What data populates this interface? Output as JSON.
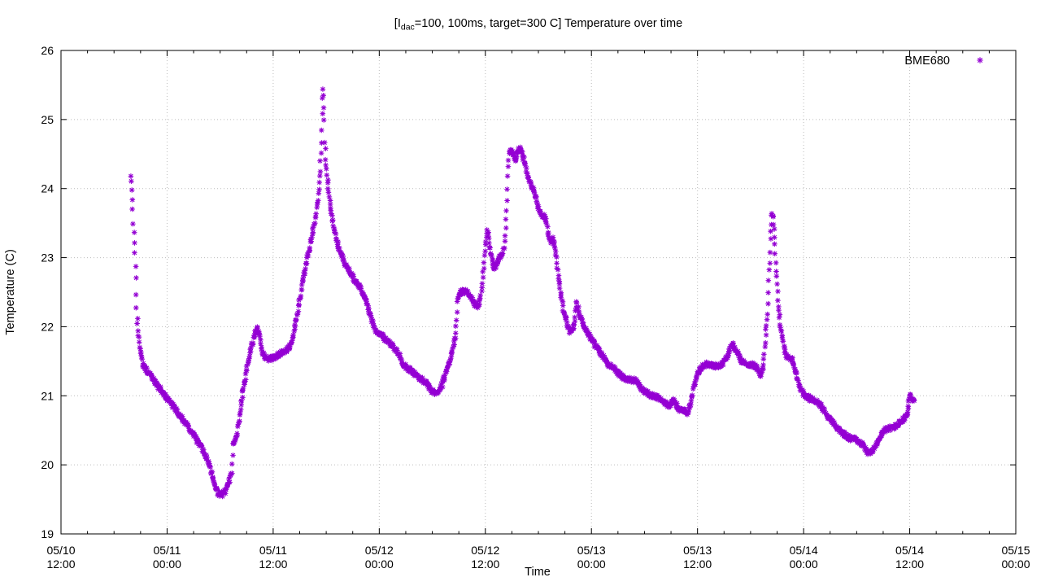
{
  "title_parts": {
    "pre": "[I",
    "sub": "dac",
    "post": "=100, 100ms, target=300 C] Temperature over time"
  },
  "chart_data": {
    "type": "scatter",
    "title": "[I_dac=100, 100ms, target=300 C] Temperature over time",
    "xlabel": "Time",
    "ylabel": "Temperature (C)",
    "ylim": [
      19,
      26
    ],
    "yticks": [
      19,
      20,
      21,
      22,
      23,
      24,
      25,
      26
    ],
    "grid": true,
    "legend_position": "top-right",
    "x_axis": {
      "unit": "hours since 05/10 12:00",
      "range_hours": [
        0,
        108
      ],
      "major_tick_hours": 12,
      "minor_tick_hours": 3,
      "tick_labels": [
        [
          "05/10",
          "12:00"
        ],
        [
          "05/11",
          "00:00"
        ],
        [
          "05/11",
          "12:00"
        ],
        [
          "05/12",
          "00:00"
        ],
        [
          "05/12",
          "12:00"
        ],
        [
          "05/13",
          "00:00"
        ],
        [
          "05/13",
          "12:00"
        ],
        [
          "05/14",
          "00:00"
        ],
        [
          "05/14",
          "12:00"
        ],
        [
          "05/15",
          "00:00"
        ]
      ]
    },
    "series": [
      {
        "name": "BME680",
        "color": "#9400d3",
        "marker": "asterisk",
        "points": [
          [
            7.9,
            24.18
          ],
          [
            7.95,
            24.1
          ],
          [
            8.0,
            23.95
          ],
          [
            8.05,
            23.82
          ],
          [
            8.1,
            23.7
          ],
          [
            8.17,
            23.52
          ],
          [
            8.23,
            23.38
          ],
          [
            8.3,
            23.2
          ],
          [
            8.35,
            23.08
          ],
          [
            8.42,
            22.9
          ],
          [
            8.55,
            22.25
          ],
          [
            8.62,
            22.1
          ],
          [
            8.7,
            21.95
          ],
          [
            8.8,
            21.85
          ],
          [
            9.0,
            21.62
          ],
          [
            9.3,
            21.45
          ],
          [
            9.6,
            21.38
          ],
          [
            10.0,
            21.33
          ],
          [
            10.4,
            21.25
          ],
          [
            10.9,
            21.15
          ],
          [
            11.6,
            21.03
          ],
          [
            12.3,
            20.92
          ],
          [
            13.0,
            20.8
          ],
          [
            13.8,
            20.66
          ],
          [
            14.6,
            20.51
          ],
          [
            15.3,
            20.37
          ],
          [
            15.9,
            20.25
          ],
          [
            16.5,
            20.1
          ],
          [
            16.9,
            19.95
          ],
          [
            17.2,
            19.8
          ],
          [
            17.5,
            19.66
          ],
          [
            17.8,
            19.58
          ],
          [
            18.2,
            19.57
          ],
          [
            18.6,
            19.62
          ],
          [
            18.9,
            19.72
          ],
          [
            19.15,
            19.82
          ],
          [
            19.3,
            19.9
          ],
          [
            19.45,
            20.28
          ],
          [
            19.6,
            20.33
          ],
          [
            19.75,
            20.38
          ],
          [
            19.9,
            20.45
          ],
          [
            20.1,
            20.6
          ],
          [
            20.3,
            20.8
          ],
          [
            20.5,
            21.0
          ],
          [
            20.7,
            21.15
          ],
          [
            20.9,
            21.3
          ],
          [
            21.2,
            21.5
          ],
          [
            21.5,
            21.68
          ],
          [
            21.8,
            21.82
          ],
          [
            22.0,
            21.92
          ],
          [
            22.2,
            21.97
          ],
          [
            22.45,
            21.88
          ],
          [
            22.7,
            21.68
          ],
          [
            23.0,
            21.57
          ],
          [
            23.4,
            21.53
          ],
          [
            23.9,
            21.55
          ],
          [
            24.5,
            21.58
          ],
          [
            25.0,
            21.62
          ],
          [
            25.5,
            21.65
          ],
          [
            25.9,
            21.72
          ],
          [
            26.2,
            21.85
          ],
          [
            26.6,
            22.1
          ],
          [
            27.0,
            22.4
          ],
          [
            27.4,
            22.7
          ],
          [
            27.8,
            22.95
          ],
          [
            28.2,
            23.2
          ],
          [
            28.6,
            23.45
          ],
          [
            28.9,
            23.7
          ],
          [
            29.1,
            23.9
          ],
          [
            29.25,
            24.15
          ],
          [
            29.35,
            24.4
          ],
          [
            29.45,
            24.65
          ],
          [
            29.5,
            24.85
          ],
          [
            29.55,
            25.1
          ],
          [
            29.6,
            25.3
          ],
          [
            29.65,
            25.42
          ],
          [
            29.7,
            25.38
          ],
          [
            29.78,
            25.0
          ],
          [
            29.85,
            24.7
          ],
          [
            29.95,
            24.45
          ],
          [
            30.1,
            24.2
          ],
          [
            30.4,
            23.85
          ],
          [
            30.7,
            23.55
          ],
          [
            31.0,
            23.35
          ],
          [
            31.4,
            23.15
          ],
          [
            32.0,
            22.95
          ],
          [
            32.5,
            22.83
          ],
          [
            33.2,
            22.68
          ],
          [
            33.8,
            22.57
          ],
          [
            34.4,
            22.42
          ],
          [
            34.8,
            22.25
          ],
          [
            35.2,
            22.08
          ],
          [
            35.6,
            21.95
          ],
          [
            36.2,
            21.88
          ],
          [
            37.1,
            21.77
          ],
          [
            38.1,
            21.64
          ],
          [
            38.6,
            21.48
          ],
          [
            39.2,
            21.4
          ],
          [
            40.2,
            21.3
          ],
          [
            41.3,
            21.18
          ],
          [
            41.9,
            21.08
          ],
          [
            42.5,
            21.04
          ],
          [
            43.0,
            21.12
          ],
          [
            43.4,
            21.28
          ],
          [
            43.9,
            21.48
          ],
          [
            44.3,
            21.65
          ],
          [
            44.6,
            21.85
          ],
          [
            44.75,
            22.1
          ],
          [
            44.85,
            22.35
          ],
          [
            45.0,
            22.48
          ],
          [
            45.5,
            22.52
          ],
          [
            46.0,
            22.5
          ],
          [
            46.4,
            22.42
          ],
          [
            46.8,
            22.32
          ],
          [
            47.2,
            22.3
          ],
          [
            47.5,
            22.45
          ],
          [
            47.7,
            22.7
          ],
          [
            47.85,
            22.95
          ],
          [
            48.0,
            23.2
          ],
          [
            48.15,
            23.38
          ],
          [
            48.3,
            23.35
          ],
          [
            48.5,
            23.15
          ],
          [
            48.8,
            22.95
          ],
          [
            49.05,
            22.84
          ],
          [
            49.4,
            22.95
          ],
          [
            49.8,
            23.05
          ],
          [
            50.15,
            23.12
          ],
          [
            50.3,
            23.4
          ],
          [
            50.4,
            23.7
          ],
          [
            50.5,
            24.0
          ],
          [
            50.6,
            24.3
          ],
          [
            50.7,
            24.52
          ],
          [
            51.0,
            24.56
          ],
          [
            51.35,
            24.42
          ],
          [
            51.7,
            24.55
          ],
          [
            52.0,
            24.58
          ],
          [
            52.3,
            24.45
          ],
          [
            52.7,
            24.22
          ],
          [
            53.2,
            24.05
          ],
          [
            53.6,
            23.95
          ],
          [
            53.9,
            23.75
          ],
          [
            54.4,
            23.62
          ],
          [
            54.8,
            23.58
          ],
          [
            55.1,
            23.35
          ],
          [
            55.4,
            23.22
          ],
          [
            55.7,
            23.28
          ],
          [
            55.95,
            23.1
          ],
          [
            56.2,
            22.8
          ],
          [
            56.5,
            22.5
          ],
          [
            56.8,
            22.25
          ],
          [
            57.2,
            22.05
          ],
          [
            57.6,
            21.92
          ],
          [
            57.95,
            21.95
          ],
          [
            58.2,
            22.2
          ],
          [
            58.35,
            22.35
          ],
          [
            58.6,
            22.2
          ],
          [
            58.9,
            22.1
          ],
          [
            59.4,
            21.95
          ],
          [
            60.0,
            21.82
          ],
          [
            60.7,
            21.68
          ],
          [
            61.4,
            21.55
          ],
          [
            62.0,
            21.45
          ],
          [
            62.7,
            21.37
          ],
          [
            63.4,
            21.28
          ],
          [
            64.2,
            21.24
          ],
          [
            65.0,
            21.22
          ],
          [
            65.7,
            21.1
          ],
          [
            66.5,
            21.02
          ],
          [
            67.5,
            20.97
          ],
          [
            68.3,
            20.9
          ],
          [
            68.8,
            20.86
          ],
          [
            69.3,
            20.94
          ],
          [
            69.8,
            20.82
          ],
          [
            70.3,
            20.78
          ],
          [
            70.9,
            20.76
          ],
          [
            71.3,
            20.92
          ],
          [
            71.6,
            21.15
          ],
          [
            72.0,
            21.33
          ],
          [
            72.5,
            21.42
          ],
          [
            73.0,
            21.46
          ],
          [
            73.6,
            21.44
          ],
          [
            74.2,
            21.43
          ],
          [
            74.8,
            21.46
          ],
          [
            75.3,
            21.55
          ],
          [
            75.8,
            21.7
          ],
          [
            76.1,
            21.73
          ],
          [
            76.5,
            21.62
          ],
          [
            77.0,
            21.5
          ],
          [
            77.5,
            21.46
          ],
          [
            78.2,
            21.45
          ],
          [
            78.8,
            21.4
          ],
          [
            79.2,
            21.3
          ],
          [
            79.45,
            21.45
          ],
          [
            79.6,
            21.7
          ],
          [
            79.75,
            21.95
          ],
          [
            79.9,
            22.2
          ],
          [
            80.0,
            22.5
          ],
          [
            80.1,
            22.8
          ],
          [
            80.2,
            23.1
          ],
          [
            80.3,
            23.4
          ],
          [
            80.4,
            23.6
          ],
          [
            80.55,
            23.62
          ],
          [
            80.7,
            23.3
          ],
          [
            80.85,
            22.95
          ],
          [
            81.0,
            22.6
          ],
          [
            81.15,
            22.3
          ],
          [
            81.35,
            22.05
          ],
          [
            81.6,
            21.85
          ],
          [
            81.9,
            21.6
          ],
          [
            82.3,
            21.55
          ],
          [
            82.7,
            21.52
          ],
          [
            83.1,
            21.35
          ],
          [
            83.5,
            21.15
          ],
          [
            84.0,
            21.02
          ],
          [
            84.7,
            20.96
          ],
          [
            85.4,
            20.93
          ],
          [
            86.0,
            20.85
          ],
          [
            86.6,
            20.73
          ],
          [
            87.2,
            20.63
          ],
          [
            87.9,
            20.52
          ],
          [
            88.6,
            20.44
          ],
          [
            89.3,
            20.37
          ],
          [
            89.9,
            20.4
          ],
          [
            90.3,
            20.32
          ],
          [
            90.8,
            20.28
          ],
          [
            91.1,
            20.2
          ],
          [
            91.5,
            20.17
          ],
          [
            91.9,
            20.22
          ],
          [
            92.3,
            20.3
          ],
          [
            92.7,
            20.42
          ],
          [
            93.1,
            20.5
          ],
          [
            93.7,
            20.53
          ],
          [
            94.3,
            20.55
          ],
          [
            94.8,
            20.6
          ],
          [
            95.3,
            20.66
          ],
          [
            95.7,
            20.72
          ],
          [
            95.85,
            20.88
          ],
          [
            96.0,
            21.02
          ],
          [
            96.2,
            20.95
          ],
          [
            96.45,
            20.92
          ]
        ]
      }
    ]
  },
  "colors": {
    "series": "#9400d3",
    "axis": "#000000",
    "grid": "#bcbcbc"
  }
}
